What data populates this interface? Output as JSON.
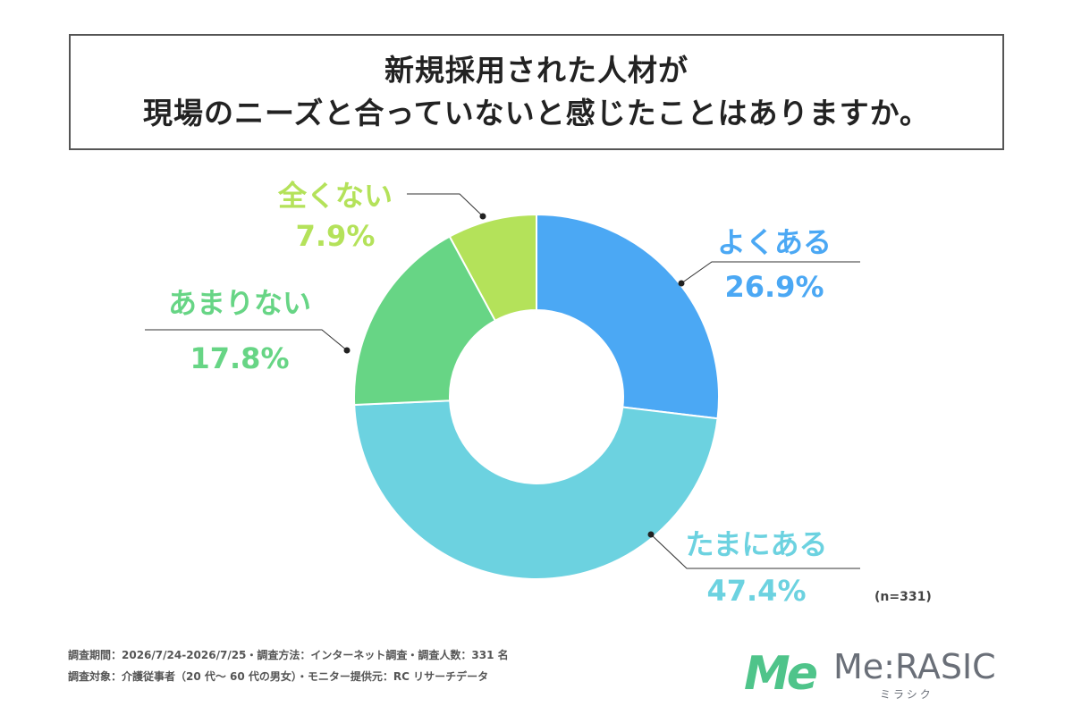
{
  "title": {
    "line1": "新規採用された人材が",
    "line2": "現場のニーズと合っていないと感じたことはありますか。"
  },
  "chart_data": {
    "type": "pie",
    "donut": true,
    "slices": [
      {
        "label": "よくある",
        "value": 26.9,
        "value_label": "26.9%",
        "color": "#4ba8f4"
      },
      {
        "label": "たまにある",
        "value": 47.4,
        "value_label": "47.4%",
        "color": "#6cd2e0"
      },
      {
        "label": "あまりない",
        "value": 17.8,
        "value_label": "17.8%",
        "color": "#67d585"
      },
      {
        "label": "全くない",
        "value": 7.9,
        "value_label": "7.9%",
        "color": "#b4e25a"
      }
    ],
    "start_angle": "top",
    "direction": "clockwise",
    "n_label": "(n=331)"
  },
  "footer": {
    "line1": "調査期間：2026/7/24-2026/7/25・調査方法：インターネット調査・調査人数：331 名",
    "line2": "調査対象：介護従事者（20 代〜 60 代の男女）・モニター提供元：RC リサーチデータ"
  },
  "logo": {
    "mark": "Me",
    "name": "Me:RASIC",
    "kana": "ミラシク",
    "mark_color": "#4fc48a",
    "text_color": "#6a6f78"
  }
}
